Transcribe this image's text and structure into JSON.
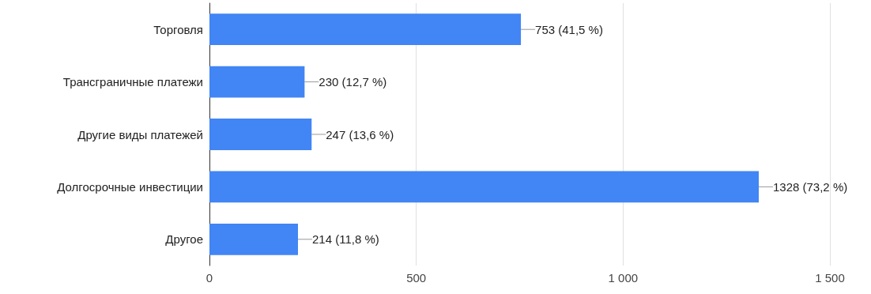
{
  "chart_data": {
    "type": "bar",
    "orientation": "horizontal",
    "categories": [
      "Торговля",
      "Трансграничные платежи",
      "Другие виды платежей",
      "Долгосрочные инвестиции",
      "Другое"
    ],
    "values": [
      753,
      230,
      247,
      1328,
      214
    ],
    "value_labels": [
      "753 (41,5 %)",
      "230 (12,7 %)",
      "247 (13,6 %)",
      "1328 (73,2 %)",
      "214 (11,8 %)"
    ],
    "color": "#4285f4",
    "xlim": [
      0,
      1500
    ],
    "xticks": [
      0,
      500,
      {
        "value": 1000,
        "label": "1 000"
      },
      {
        "value": 1500,
        "label": "1 500"
      }
    ],
    "grid": "x"
  }
}
